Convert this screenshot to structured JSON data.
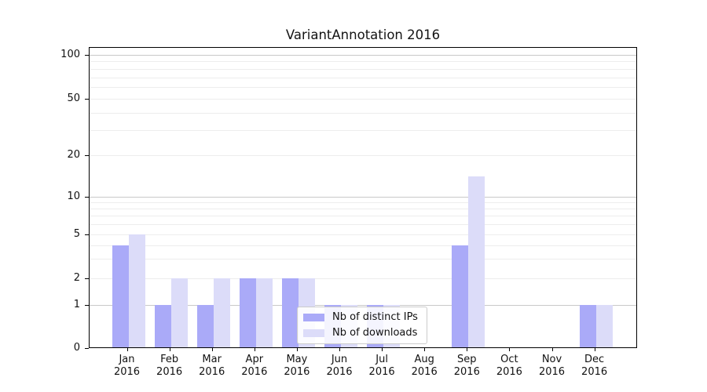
{
  "title": "VariantAnnotation 2016",
  "chart_data": {
    "type": "bar",
    "title": "VariantAnnotation 2016",
    "categories": [
      "Jan 2016",
      "Feb 2016",
      "Mar 2016",
      "Apr 2016",
      "May 2016",
      "Jun 2016",
      "Jul 2016",
      "Aug 2016",
      "Sep 2016",
      "Oct 2016",
      "Nov 2016",
      "Dec 2016"
    ],
    "series": [
      {
        "name": "Nb of distinct IPs",
        "color": "#aaaaf8",
        "values": [
          4,
          1,
          1,
          2,
          2,
          1,
          1,
          0,
          4,
          0,
          0,
          1
        ]
      },
      {
        "name": "Nb of downloads",
        "color": "#dcdcf9",
        "values": [
          5,
          2,
          2,
          2,
          2,
          1,
          1,
          0,
          14,
          0,
          0,
          1
        ]
      }
    ],
    "xlabel": "",
    "ylabel": "",
    "y_axis": {
      "ticks": [
        0,
        1,
        2,
        5,
        10,
        20,
        50,
        100
      ],
      "scale": "log-like with zero baseline",
      "ylim": [
        0,
        113
      ]
    },
    "grid": "horizontal, minor lines at 2-9/20-90, major lines at 1/10/100",
    "legend_position": "lower center, inside plot"
  },
  "legend": {
    "items": [
      "Nb of distinct IPs",
      "Nb of downloads"
    ]
  },
  "colors": {
    "bar_distinct_ips": "#aaaaf8",
    "bar_downloads": "#dcdcf9",
    "grid_major": "#c9c9c9",
    "grid_minor": "#ededed",
    "axis": "#000000",
    "background": "#ffffff"
  }
}
